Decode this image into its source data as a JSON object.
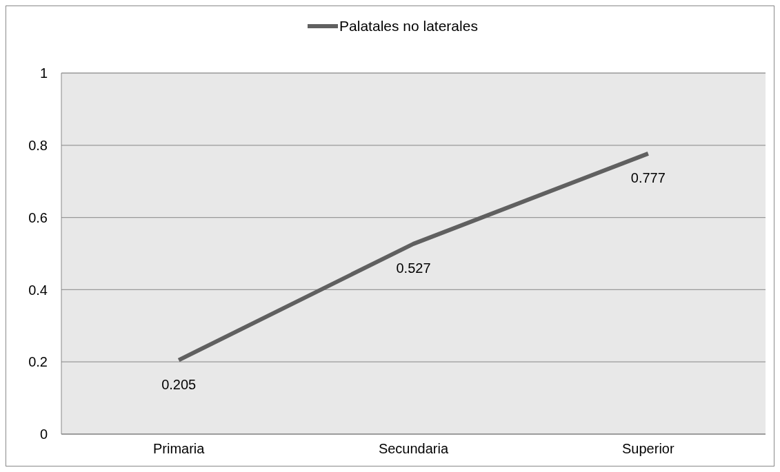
{
  "chart_data": {
    "type": "line",
    "categories": [
      "Primaria",
      "Secundaria",
      "Superior"
    ],
    "series": [
      {
        "name": "Palatales no laterales",
        "color": "#606060",
        "values": [
          0.205,
          0.527,
          0.777
        ]
      }
    ],
    "ylim": [
      0,
      1
    ],
    "yticks": [
      0,
      0.2,
      0.4,
      0.6,
      0.8,
      1
    ],
    "grid": "y",
    "legend": "top",
    "data_labels": true,
    "marker": "none"
  }
}
